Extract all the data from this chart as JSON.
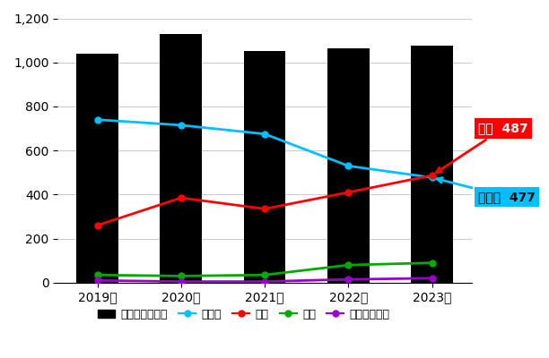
{
  "years": [
    "2019年",
    "2020年",
    "2021年",
    "2022年",
    "2023年"
  ],
  "bar_values": [
    1040,
    1130,
    1050,
    1065,
    1075
  ],
  "kakuseizai": [
    740,
    715,
    675,
    530,
    477
  ],
  "taima": [
    260,
    385,
    335,
    410,
    487
  ],
  "mayaku": [
    35,
    30,
    35,
    80,
    90
  ],
  "kiken": [
    10,
    5,
    5,
    15,
    20
  ],
  "bar_color": "#000000",
  "kakuseizai_color": "#00BFFF",
  "taima_color": "#FF0000",
  "mayaku_color": "#00AA00",
  "kiken_color": "#9900CC",
  "annotation_taima_color": "#FF0000",
  "annotation_kakuseizai_color": "#00BFFF",
  "taima_label": "大麻  487",
  "kakuseizai_label": "覚醒剤  477",
  "ylim": [
    0,
    1200
  ],
  "yticks": [
    0,
    200,
    400,
    600,
    800,
    1000,
    1200
  ],
  "legend_labels": [
    "薬事犯検挙者数",
    "覚醒剤",
    "大麻",
    "麻薬",
    "危険ドラッグ"
  ],
  "background_color": "#FFFFFF",
  "bar_width": 0.5
}
